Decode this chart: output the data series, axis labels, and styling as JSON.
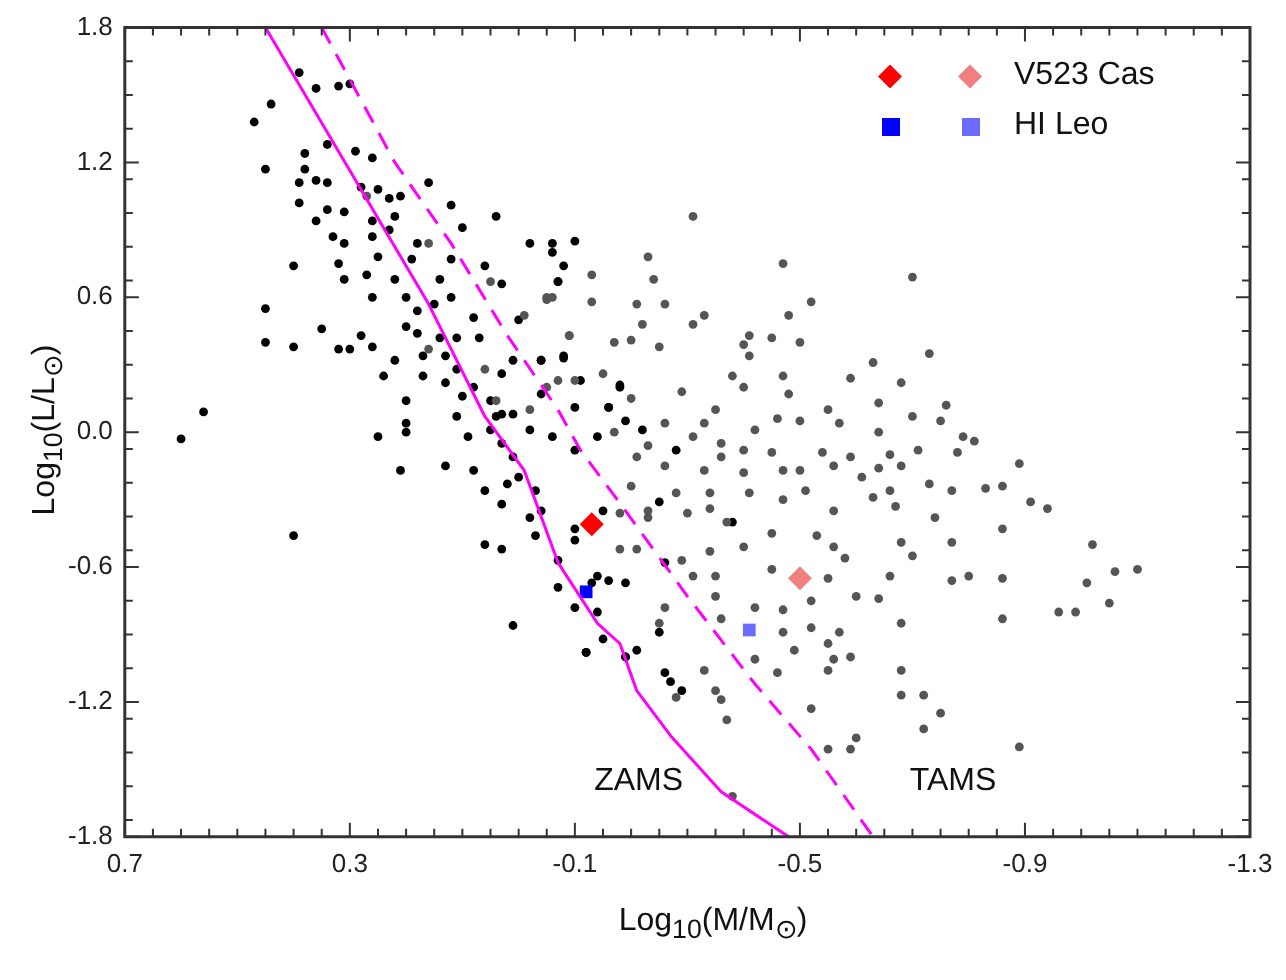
{
  "chart_data": {
    "type": "scatter",
    "xlabel": "Log$_{10}$(M/M$_{⊙}$)",
    "ylabel": "Log$_{10}$(L/L$_{⊙}$)",
    "xlim": [
      0.7,
      -1.3
    ],
    "xticks": [
      0.7,
      0.3,
      -0.1,
      -0.5,
      -0.9,
      -1.3
    ],
    "ylim": [
      -1.8,
      1.8
    ],
    "yticks": [
      1.8,
      1.2,
      0.6,
      {
        "value": 0,
        "label": "0.0"
      },
      -0.6,
      -1.2,
      -1.8
    ],
    "grid": false,
    "legend": "top right",
    "series": [
      {
        "marker": "circle",
        "color": "#000000",
        "x": [
          0.39,
          0.36,
          0.32,
          0.3,
          0.44,
          0.47,
          0.45,
          0.34,
          0.29,
          0.38,
          0.38,
          0.36,
          0.39,
          0.26,
          0.34,
          0.28,
          0.39,
          0.25,
          0.16,
          0.23,
          0.21,
          0.34,
          0.31,
          0.36,
          0.26,
          0.22,
          0.12,
          0.04,
          0.33,
          0.31,
          0.26,
          0.23,
          0.18,
          0.1,
          0.32,
          0.4,
          0.25,
          0.19,
          0.12,
          0.06,
          -0.02,
          -0.06,
          -0.1,
          -0.06,
          -0.08,
          0.31,
          0.27,
          0.22,
          0.14,
          0.03,
          -0.07,
          0.45,
          0.26,
          0.2,
          0.18,
          0.15,
          0.12,
          0.08,
          0.35,
          0.28,
          0.2,
          0.18,
          0.14,
          0.11,
          0.07,
          0.0,
          0.45,
          0.4,
          0.32,
          0.3,
          0.26,
          0.22,
          0.17,
          0.13,
          0.11,
          0.24,
          0.17,
          0.13,
          0.08,
          0.03,
          0.01,
          -0.04,
          -0.08,
          0.2,
          0.1,
          0.05,
          -0.04,
          -0.1,
          -0.16,
          -0.18,
          0.56,
          0.04,
          0.01,
          0.6,
          0.25,
          0.2,
          0.2,
          0.21,
          0.13,
          0.09,
          0.08,
          0.11,
          0.05,
          0.03,
          0.01,
          0.06,
          0.02,
          0.0,
          -0.03,
          0.03,
          -0.02,
          -0.04,
          0.06,
          0.03,
          -0.03,
          -0.07,
          -0.1,
          -0.1,
          -0.15,
          -0.14,
          -0.16,
          -0.19,
          -0.13,
          -0.07,
          -0.1,
          -0.14,
          -0.15,
          0.01,
          -0.12,
          -0.19,
          -0.21,
          0.4,
          0.03,
          -0.02,
          -0.07,
          -0.04,
          -0.08,
          -0.11,
          -0.18,
          -0.16,
          -0.19,
          -0.22,
          -0.28,
          -0.14,
          -0.25,
          -0.38,
          -0.06,
          -0.1,
          -0.26,
          -0.26,
          -0.27,
          -0.29,
          -0.12,
          -0.19,
          -0.25
        ],
        "values": [
          1.6,
          1.53,
          1.54,
          1.55,
          1.46,
          1.38,
          1.17,
          1.28,
          1.25,
          1.24,
          1.17,
          1.12,
          1.11,
          1.22,
          1.11,
          1.09,
          1.02,
          1.08,
          1.11,
          1.04,
          1.05,
          0.99,
          0.98,
          0.94,
          0.94,
          0.96,
          1.01,
          0.96,
          0.87,
          0.84,
          0.87,
          0.9,
          0.84,
          0.91,
          0.75,
          0.74,
          0.78,
          0.77,
          0.77,
          0.74,
          0.84,
          0.84,
          0.85,
          0.8,
          0.74,
          0.68,
          0.7,
          0.68,
          0.68,
          0.66,
          0.67,
          0.55,
          0.6,
          0.6,
          0.54,
          0.57,
          0.6,
          0.51,
          0.46,
          0.43,
          0.47,
          0.44,
          0.42,
          0.42,
          0.42,
          0.5,
          0.4,
          0.38,
          0.37,
          0.37,
          0.38,
          0.32,
          0.34,
          0.34,
          0.28,
          0.25,
          0.25,
          0.22,
          0.2,
          0.26,
          0.32,
          0.32,
          0.34,
          0.14,
          0.16,
          0.14,
          0.17,
          0.11,
          0.11,
          0.2,
          0.09,
          0.07,
          0.08,
          -0.03,
          -0.02,
          0.04,
          0.0,
          -0.17,
          -0.15,
          -0.02,
          -0.17,
          0.07,
          0.01,
          -0.05,
          -0.11,
          -0.26,
          -0.23,
          -0.2,
          -0.26,
          -0.32,
          -0.38,
          -0.35,
          -0.5,
          -0.52,
          -0.46,
          -0.57,
          -0.48,
          -0.43,
          -0.35,
          -0.64,
          -0.66,
          -0.67,
          -0.67,
          -0.69,
          -0.78,
          -0.8,
          -0.92,
          -0.86,
          -0.98,
          -1.0,
          -0.97,
          -0.46,
          0.08,
          0.01,
          0.67,
          0.32,
          0.33,
          0.23,
          0.21,
          0.11,
          0.05,
          0.01,
          -0.08,
          -0.02,
          -0.31,
          -0.4,
          -0.02,
          -0.08,
          -0.58,
          -1.07,
          -1.11,
          -1.15,
          -0.98,
          -1.0,
          -0.89
        ]
      },
      {
        "marker": "circle",
        "color": "#555555",
        "x": [
          -0.31,
          -0.23,
          -0.47,
          -0.7,
          -0.13,
          -0.24,
          -0.05,
          -0.13,
          -0.21,
          -0.26,
          -0.33,
          -0.31,
          -0.22,
          -0.52,
          -0.48,
          -0.09,
          -0.17,
          -0.2,
          -0.25,
          -0.4,
          -0.41,
          -0.45,
          -0.5,
          -0.41,
          -0.63,
          -0.73,
          -0.15,
          -0.38,
          -0.47,
          -0.59,
          -0.68,
          -0.4,
          -0.48,
          -0.2,
          -0.29,
          -0.55,
          -0.64,
          -0.76,
          -0.7,
          -0.75,
          -0.35,
          -0.26,
          -0.33,
          -0.42,
          -0.46,
          -0.5,
          -0.57,
          -0.64,
          -0.79,
          -0.81,
          -0.17,
          -0.23,
          -0.31,
          -0.36,
          -0.4,
          -0.45,
          -0.54,
          -0.59,
          -0.66,
          -0.71,
          -0.78,
          -0.89,
          -0.21,
          -0.36,
          -0.26,
          -0.33,
          -0.4,
          -0.47,
          -0.5,
          -0.56,
          -0.61,
          -0.64,
          -0.68,
          -0.73,
          -0.77,
          -0.83,
          -0.86,
          -0.2,
          -0.28,
          -0.34,
          -0.41,
          -0.51,
          -0.63,
          -0.66,
          -0.23,
          -0.34,
          -0.47,
          -0.56,
          -0.67,
          -0.74,
          -0.91,
          -0.94,
          -0.23,
          -0.3,
          -0.37,
          -0.4,
          -0.45,
          -0.53,
          -0.56,
          -0.68,
          -0.7,
          -0.77,
          -0.86,
          -1.02,
          -0.21,
          -0.34,
          -0.45,
          -0.55,
          -0.58,
          -0.66,
          -0.77,
          -0.8,
          -0.86,
          -1.01,
          -1.06,
          -1.1,
          -1.05,
          -0.99,
          -0.96,
          -0.86,
          -0.68,
          -0.64,
          -0.6,
          -0.52,
          -0.47,
          -0.42,
          -0.35,
          -0.31,
          -0.35,
          -0.26,
          -0.25,
          -0.36,
          -0.47,
          -0.52,
          -0.57,
          -0.55,
          -0.49,
          -0.59,
          -0.56,
          -0.55,
          -0.42,
          -0.46,
          -0.68,
          -0.68,
          -0.72,
          -0.75,
          -0.72,
          -0.52,
          -0.6,
          -0.55,
          -0.59,
          -0.89,
          -0.33,
          -0.35,
          -0.36,
          -0.28,
          -0.37,
          -0.38,
          -0.29,
          -0.18,
          -0.18,
          0.27,
          0.16,
          0.05,
          -0.01,
          -0.05,
          -0.06,
          -0.09,
          -0.1,
          -0.07,
          -0.05,
          0.06,
          0.04,
          -0.02,
          0.16
        ],
        "values": [
          0.96,
          0.78,
          0.75,
          0.69,
          0.7,
          0.68,
          0.59,
          0.58,
          0.57,
          0.57,
          0.52,
          0.48,
          0.48,
          0.58,
          0.52,
          0.43,
          0.4,
          0.41,
          0.38,
          0.39,
          0.43,
          0.42,
          0.4,
          0.34,
          0.31,
          0.35,
          0.26,
          0.25,
          0.25,
          0.24,
          0.22,
          0.2,
          0.17,
          0.15,
          0.18,
          0.1,
          0.13,
          0.12,
          0.07,
          0.05,
          0.1,
          0.04,
          0.04,
          0.01,
          0.06,
          0.05,
          0.04,
          0.0,
          -0.02,
          -0.04,
          0.0,
          -0.06,
          -0.02,
          -0.05,
          -0.08,
          -0.09,
          -0.09,
          -0.11,
          -0.1,
          -0.08,
          -0.09,
          -0.14,
          -0.11,
          -0.11,
          -0.15,
          -0.17,
          -0.18,
          -0.17,
          -0.17,
          -0.15,
          -0.2,
          -0.16,
          -0.15,
          -0.23,
          -0.26,
          -0.25,
          -0.24,
          -0.24,
          -0.27,
          -0.27,
          -0.27,
          -0.26,
          -0.29,
          -0.26,
          -0.35,
          -0.34,
          -0.3,
          -0.35,
          -0.33,
          -0.38,
          -0.31,
          -0.34,
          -0.38,
          -0.36,
          -0.4,
          -0.51,
          -0.45,
          -0.46,
          -0.51,
          -0.49,
          -0.55,
          -0.49,
          -0.43,
          -0.5,
          -0.52,
          -0.53,
          -0.61,
          -0.65,
          -0.56,
          -0.64,
          -0.66,
          -0.64,
          -0.65,
          -0.67,
          -0.62,
          -0.61,
          -0.76,
          -0.8,
          -0.8,
          -0.83,
          -0.85,
          -0.74,
          -0.73,
          -0.75,
          -0.79,
          -0.78,
          -0.73,
          -0.64,
          -0.64,
          -0.78,
          -0.85,
          -0.83,
          -0.89,
          -0.87,
          -0.89,
          -0.94,
          -0.97,
          -1.0,
          -1.01,
          -1.06,
          -1.01,
          -1.07,
          -1.06,
          -1.17,
          -1.17,
          -1.25,
          -1.32,
          -1.23,
          -1.36,
          -1.41,
          -1.41,
          -1.4,
          -1.06,
          -1.15,
          -1.19,
          -1.18,
          -1.28,
          -1.62,
          -0.57,
          -0.52,
          -0.36,
          1.05,
          0.84,
          0.67,
          0.52,
          0.6,
          0.6,
          0.43,
          0.23,
          0.23,
          0.2,
          0.28,
          0.14,
          0.1,
          0.37
        ]
      },
      {
        "marker": "diamond",
        "color": "#ff0000",
        "x": [
          -0.13
        ],
        "values": [
          -0.41
        ]
      },
      {
        "name": "V523 Cas",
        "marker": "diamond",
        "color": "#f08080",
        "x": [
          -0.5
        ],
        "values": [
          -0.65
        ]
      },
      {
        "marker": "square",
        "color": "#0000ff",
        "x": [
          -0.12
        ],
        "values": [
          -0.71
        ]
      },
      {
        "name": "HI Leo",
        "marker": "square",
        "color": "#6b6bff",
        "x": [
          -0.41
        ],
        "values": [
          -0.88
        ]
      },
      {
        "type": "line",
        "name": "ZAMS",
        "marker": "none",
        "line_style": "solid",
        "color": "#ff00ff",
        "x": [
          0.45,
          0.16,
          0.06,
          -0.01,
          -0.07,
          -0.14,
          -0.18,
          -0.21,
          -0.27,
          -0.36,
          -0.48
        ],
        "values": [
          1.8,
          0.57,
          0.07,
          -0.17,
          -0.58,
          -0.85,
          -0.94,
          -1.15,
          -1.35,
          -1.6,
          -1.8
        ]
      },
      {
        "type": "line",
        "name": "TAMS",
        "marker": "none",
        "line_style": "dashed",
        "color": "#ff00ff",
        "x": [
          0.35,
          0.22,
          0.12,
          0.02,
          -0.07,
          -0.11,
          -0.19,
          -0.3,
          -0.42,
          -0.52,
          -0.63
        ],
        "values": [
          1.8,
          1.2,
          0.84,
          0.43,
          0.1,
          -0.08,
          -0.35,
          -0.73,
          -1.12,
          -1.41,
          -1.8
        ]
      }
    ]
  }
}
